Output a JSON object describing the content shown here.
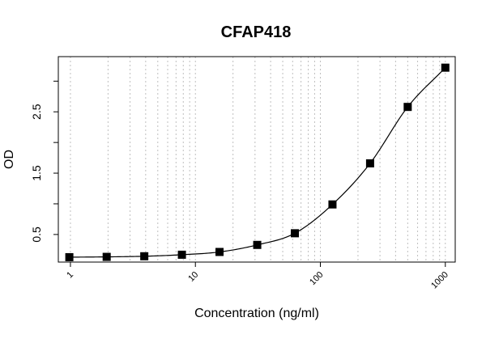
{
  "chart_data": {
    "type": "scatter",
    "title": "CFAP418",
    "xlabel": "Concentration (ng/ml)",
    "ylabel": "OD",
    "x_scale": "log10",
    "xlim": [
      0.8,
      1200
    ],
    "ylim": [
      0.05,
      3.4
    ],
    "x_ticks": [
      1,
      10,
      100,
      1000
    ],
    "x_tick_labels": [
      "1",
      "10",
      "100",
      "1000"
    ],
    "y_ticks": [
      0.5,
      1,
      1.5,
      2,
      2.5,
      3
    ],
    "y_tick_labels": [
      "0.5",
      "",
      "1.5",
      "",
      "2.5",
      ""
    ],
    "grid": "vertical dotted lines at log minor ticks",
    "legend": "none",
    "marker": "filled square",
    "fit": "smooth sigmoid curve through points",
    "series": [
      {
        "x": [
          0.98,
          1.95,
          3.9,
          7.8,
          15.6,
          31.25,
          62.5,
          125,
          250,
          500,
          1000
        ],
        "y": [
          0.13,
          0.135,
          0.145,
          0.17,
          0.215,
          0.33,
          0.52,
          0.99,
          1.66,
          2.58,
          3.22
        ]
      }
    ],
    "colors": {
      "points": "#000000",
      "line": "#000000",
      "grid": "#bfbfbf"
    }
  }
}
